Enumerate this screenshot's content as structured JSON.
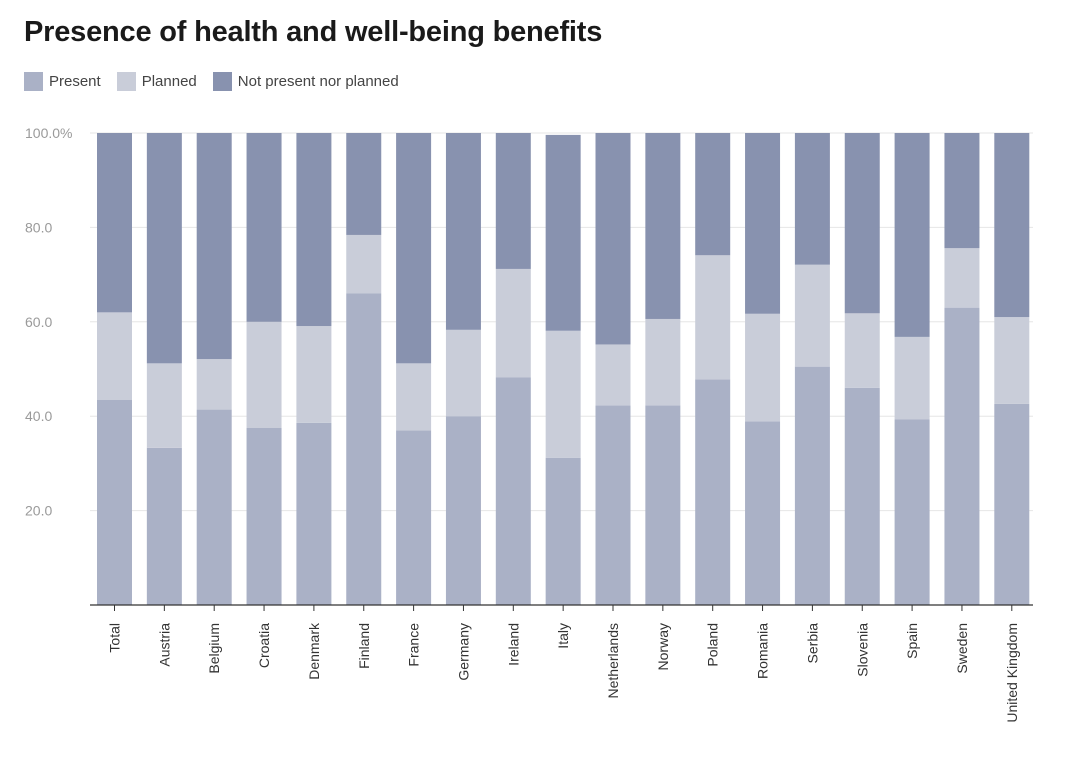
{
  "chart_data": {
    "type": "bar",
    "stacked": true,
    "title": "Presence of health and well-being benefits",
    "xlabel": "",
    "ylabel": "",
    "ylim": [
      0,
      100
    ],
    "yticks": [
      20,
      40,
      60,
      80,
      100
    ],
    "ytick_labels": [
      "20.0",
      "40.0",
      "60.0",
      "80.0",
      "100.0%"
    ],
    "legend_position": "top-left",
    "categories": [
      "Total",
      "Austria",
      "Belgium",
      "Croatia",
      "Denmark",
      "Finland",
      "France",
      "Germany",
      "Ireland",
      "Italy",
      "Netherlands",
      "Norway",
      "Poland",
      "Romania",
      "Serbia",
      "Slovenia",
      "Spain",
      "Sweden",
      "United Kingdom"
    ],
    "series": [
      {
        "name": "Present",
        "color": "#aab1c6",
        "values": [
          43.5,
          33.3,
          41.4,
          37.5,
          38.6,
          66.0,
          37.0,
          40.0,
          48.2,
          31.2,
          42.3,
          42.3,
          47.8,
          38.9,
          50.5,
          46.0,
          39.3,
          63.0,
          42.6
        ]
      },
      {
        "name": "Planned",
        "color": "#c9cdd9",
        "values": [
          18.5,
          17.9,
          10.7,
          22.5,
          20.5,
          12.4,
          14.2,
          18.3,
          23.0,
          26.9,
          12.9,
          18.3,
          26.3,
          22.8,
          21.6,
          15.8,
          17.5,
          12.6,
          18.4
        ]
      },
      {
        "name": "Not present nor planned",
        "color": "#8892af",
        "values": [
          38.0,
          48.8,
          47.9,
          40.0,
          40.9,
          21.6,
          48.8,
          41.7,
          28.8,
          41.5,
          44.8,
          39.4,
          25.9,
          38.3,
          27.9,
          38.2,
          43.2,
          24.4,
          39.0
        ]
      }
    ]
  }
}
